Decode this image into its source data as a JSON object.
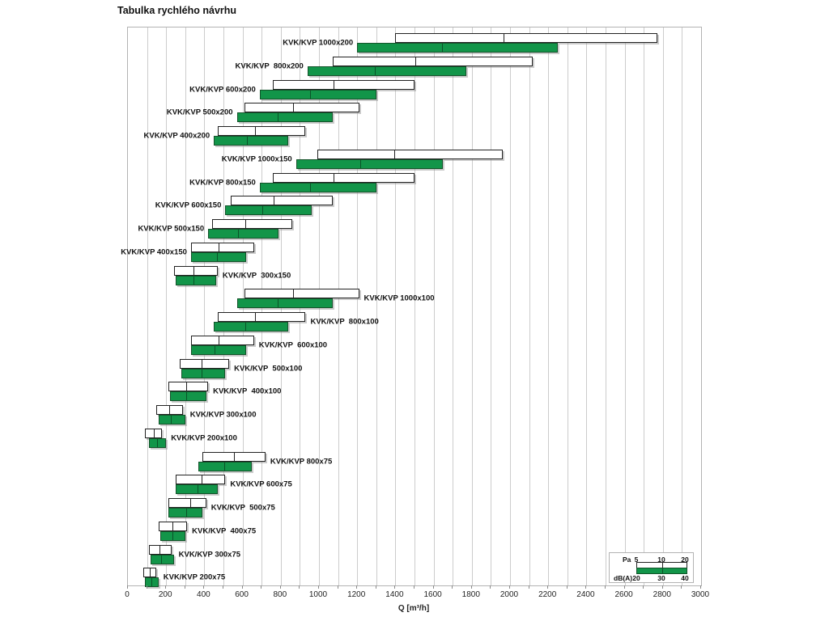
{
  "chart_data": {
    "type": "bar",
    "orientation": "horizontal-range",
    "title": "Tabulka rychlého návrhu",
    "xlabel": "Q [m³/h]",
    "xlim": [
      0,
      3000
    ],
    "x_major_tick": 200,
    "x_minor_tick": 100,
    "grid": "vertical every 100",
    "legend_position": "bottom-right",
    "series_meaning": {
      "pa": {
        "name": "Pa",
        "range_ticks": [
          5,
          10,
          20
        ],
        "bar_color": "#ffffff"
      },
      "dba": {
        "name": "dB(A)",
        "range_ticks": [
          20,
          30,
          40
        ],
        "bar_color": "#129549"
      }
    },
    "rows": [
      {
        "label": "KVK/KVP 1000x200",
        "label_side": "left",
        "pa": [
          1400,
          1960,
          2770
        ],
        "dba": [
          1200,
          1640,
          2250
        ]
      },
      {
        "label": "KVK/KVP  800x200",
        "label_side": "left",
        "pa": [
          1070,
          1500,
          2120
        ],
        "dba": [
          940,
          1290,
          1770
        ]
      },
      {
        "label": "KVK/KVP 600x200",
        "label_side": "left",
        "pa": [
          760,
          1070,
          1500
        ],
        "dba": [
          690,
          950,
          1300
        ]
      },
      {
        "label": "KVK/KVP 500x200",
        "label_side": "left",
        "pa": [
          610,
          860,
          1210
        ],
        "dba": [
          570,
          780,
          1070
        ]
      },
      {
        "label": "KVK/KVP 400x200",
        "label_side": "left",
        "pa": [
          470,
          660,
          930
        ],
        "dba": [
          450,
          620,
          840
        ]
      },
      {
        "label": "KVK/KVP 1000x150",
        "label_side": "left",
        "pa": [
          990,
          1390,
          1960
        ],
        "dba": [
          880,
          1210,
          1650
        ]
      },
      {
        "label": "KVK/KVP 800x150",
        "label_side": "left",
        "pa": [
          760,
          1070,
          1500
        ],
        "dba": [
          690,
          950,
          1300
        ]
      },
      {
        "label": "KVK/KVP 600x150",
        "label_side": "left",
        "pa": [
          540,
          760,
          1070
        ],
        "dba": [
          510,
          700,
          960
        ]
      },
      {
        "label": "KVK/KVP 500x150",
        "label_side": "left",
        "pa": [
          440,
          610,
          860
        ],
        "dba": [
          420,
          570,
          790
        ]
      },
      {
        "label": "KVK/KVP 400x150",
        "label_side": "left",
        "pa": [
          330,
          470,
          660
        ],
        "dba": [
          330,
          460,
          620
        ]
      },
      {
        "label": "KVK/KVP  300x150",
        "label_side": "right",
        "pa": [
          240,
          340,
          470
        ],
        "dba": [
          250,
          340,
          460
        ]
      },
      {
        "label": "KVK/KVP 1000x100",
        "label_side": "right",
        "pa": [
          610,
          860,
          1210
        ],
        "dba": [
          570,
          780,
          1070
        ]
      },
      {
        "label": "KVK/KVP  800x100",
        "label_side": "right",
        "pa": [
          470,
          660,
          930
        ],
        "dba": [
          450,
          610,
          840
        ]
      },
      {
        "label": "KVK/KVP  600x100",
        "label_side": "right",
        "pa": [
          330,
          470,
          660
        ],
        "dba": [
          330,
          450,
          620
        ]
      },
      {
        "label": "KVK/KVP  500x100",
        "label_side": "right",
        "pa": [
          270,
          380,
          530
        ],
        "dba": [
          280,
          380,
          510
        ]
      },
      {
        "label": "KVK/KVP  400x100",
        "label_side": "right",
        "pa": [
          210,
          300,
          420
        ],
        "dba": [
          220,
          300,
          410
        ]
      },
      {
        "label": "KVK/KVP 300x100",
        "label_side": "right",
        "pa": [
          150,
          210,
          290
        ],
        "dba": [
          160,
          220,
          300
        ]
      },
      {
        "label": "KVK/KVP 200x100",
        "label_side": "right",
        "pa": [
          90,
          130,
          180
        ],
        "dba": [
          110,
          150,
          200
        ]
      },
      {
        "label": "KVK/KVP 800x75",
        "label_side": "right",
        "pa": [
          390,
          550,
          720
        ],
        "dba": [
          370,
          500,
          650
        ]
      },
      {
        "label": "KVK/KVP 600x75",
        "label_side": "right",
        "pa": [
          250,
          380,
          510
        ],
        "dba": [
          250,
          360,
          470
        ]
      },
      {
        "label": "KVK/KVP  500x75",
        "label_side": "right",
        "pa": [
          210,
          320,
          410
        ],
        "dba": [
          210,
          300,
          390
        ]
      },
      {
        "label": "KVK/KVP  400x75",
        "label_side": "right",
        "pa": [
          160,
          230,
          310
        ],
        "dba": [
          170,
          230,
          300
        ]
      },
      {
        "label": "KVK/KVP 300x75",
        "label_side": "right",
        "pa": [
          110,
          160,
          230
        ],
        "dba": [
          120,
          170,
          240
        ]
      },
      {
        "label": "KVK/KVP 200x75",
        "label_side": "right",
        "pa": [
          80,
          110,
          150
        ],
        "dba": [
          90,
          120,
          160
        ]
      }
    ],
    "x_tick_labels": [
      "0",
      "200",
      "400",
      "600",
      "800",
      "1000",
      "1200",
      "1400",
      "1600",
      "1800",
      "2000",
      "2200",
      "2400",
      "2600",
      "2800",
      "3000"
    ],
    "legend": {
      "pa_label": "Pa",
      "pa_ticks": [
        "5",
        "10",
        "20"
      ],
      "dba_label": "dB(A)",
      "dba_ticks": [
        "20",
        "30",
        "40"
      ]
    },
    "colors": {
      "green": "#129549",
      "gridline": "#cccccc",
      "plot_border": "#b3b3b3",
      "bar_border": "#222222"
    }
  }
}
